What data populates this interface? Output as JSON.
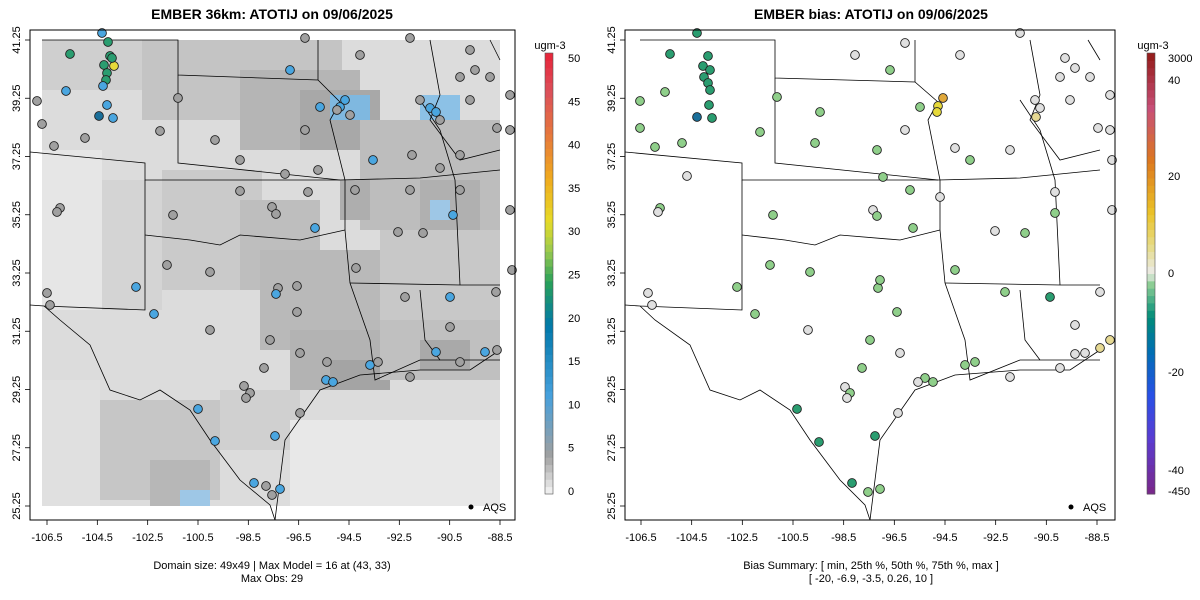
{
  "left_panel": {
    "title": "EMBER 36km: ATOTIJ on 09/06/2025",
    "lon_ticks": [
      "-106.5",
      "-104.5",
      "-102.5",
      "-100.5",
      "-98.5",
      "-96.5",
      "-94.5",
      "-92.5",
      "-90.5",
      "-88.5"
    ],
    "lat_ticks": [
      "25.25",
      "27.25",
      "29.25",
      "31.25",
      "33.25",
      "35.25",
      "37.25",
      "39.25",
      "41.25"
    ],
    "colorbar": {
      "units": "ugm-3",
      "labels": [
        "0",
        "5",
        "10",
        "15",
        "20",
        "25",
        "30",
        "35",
        "40",
        "45",
        "50"
      ]
    },
    "legend_label": "AQS",
    "caption_line1": "Domain size: 49x49 | Max Model = 16 at (43, 33)",
    "caption_line2": "Max Obs: 29"
  },
  "right_panel": {
    "title": "EMBER bias: ATOTIJ on 09/06/2025",
    "lon_ticks": [
      "-106.5",
      "-104.5",
      "-102.5",
      "-100.5",
      "-98.5",
      "-96.5",
      "-94.5",
      "-92.5",
      "-90.5",
      "-88.5"
    ],
    "lat_ticks": [
      "25.25",
      "27.25",
      "29.25",
      "31.25",
      "33.25",
      "35.25",
      "37.25",
      "39.25",
      "41.25"
    ],
    "colorbar": {
      "units": "ugm-3",
      "labels": [
        "3000",
        "40",
        "20",
        "0",
        "-20",
        "-40",
        "-450"
      ]
    },
    "legend_label": "AQS",
    "caption_line1": "Bias Summary: [ min, 25th %, 50th %, 75th %, max ]",
    "caption_line2": "[ -20,   -6.9,   -3.5,   0.26,   10 ]"
  },
  "colors": {
    "map_gray_light": "#e8e8e8",
    "map_gray_dark": "#9a9a9a",
    "highlight_blue": "#4aa6e0",
    "bias_green": "#8fcf8a"
  }
}
